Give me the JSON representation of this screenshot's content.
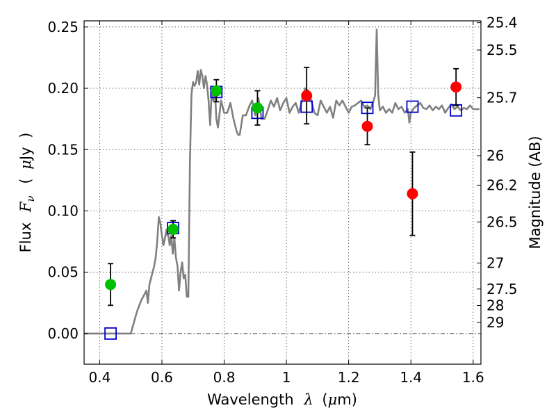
{
  "chart_data": {
    "type": "scatter",
    "xlabel": "Wavelength  λ (μm)",
    "ylabel": "Flux  F_ν  ( μJy )",
    "ylabel_parts": {
      "prefix": "Flux",
      "symbol": "F",
      "subscript": "ν",
      "open": "(",
      "unit_symbol": "μ",
      "unit": "Jy",
      "close": ")"
    },
    "xlabel_parts": {
      "text": "Wavelength",
      "symbol": "λ",
      "open": "(",
      "unit_symbol": "μ",
      "unit": "m",
      "close": ")"
    },
    "y2label": "Magnitude (AB)",
    "xlim": [
      0.35,
      1.625
    ],
    "ylim": [
      -0.025,
      0.255
    ],
    "grid": true,
    "x_ticks": [
      0.4,
      0.6,
      0.8,
      1.0,
      1.2,
      1.4,
      1.6
    ],
    "x_tick_labels": [
      "0.4",
      "0.6",
      "0.8",
      "1",
      "1.2",
      "1.4",
      "1.6"
    ],
    "y_ticks": [
      0.0,
      0.05,
      0.1,
      0.15,
      0.2,
      0.25
    ],
    "y_tick_labels": [
      "0.00",
      "0.05",
      "0.10",
      "0.15",
      "0.20",
      "0.25"
    ],
    "mag_ticks": [
      {
        "label": "25.4",
        "flux": 0.2535
      },
      {
        "label": "25.5",
        "flux": 0.2312
      },
      {
        "label": "25.7",
        "flux": 0.1923
      },
      {
        "label": "26",
        "flux": 0.145
      },
      {
        "label": "26.2",
        "flux": 0.121
      },
      {
        "label": "26.5",
        "flux": 0.091
      },
      {
        "label": "27",
        "flux": 0.0575
      },
      {
        "label": "27.5",
        "flux": 0.0363
      },
      {
        "label": "28",
        "flux": 0.0229
      },
      {
        "label": "29",
        "flux": 0.0091
      }
    ],
    "series": [
      {
        "kind": "model",
        "color": "#808080",
        "x": [
          0.35,
          0.5,
          0.52,
          0.535,
          0.54,
          0.55,
          0.555,
          0.56,
          0.565,
          0.57,
          0.575,
          0.58,
          0.585,
          0.59,
          0.595,
          0.6,
          0.605,
          0.61,
          0.615,
          0.618,
          0.62,
          0.625,
          0.63,
          0.635,
          0.64,
          0.645,
          0.65,
          0.655,
          0.66,
          0.665,
          0.67,
          0.675,
          0.68,
          0.685,
          0.69,
          0.695,
          0.7,
          0.705,
          0.71,
          0.715,
          0.72,
          0.725,
          0.73,
          0.735,
          0.74,
          0.745,
          0.75,
          0.755,
          0.76,
          0.765,
          0.77,
          0.775,
          0.78,
          0.79,
          0.8,
          0.81,
          0.82,
          0.83,
          0.84,
          0.845,
          0.85,
          0.86,
          0.87,
          0.88,
          0.89,
          0.9,
          0.91,
          0.92,
          0.93,
          0.94,
          0.95,
          0.96,
          0.97,
          0.98,
          0.99,
          1.0,
          1.01,
          1.02,
          1.03,
          1.04,
          1.05,
          1.06,
          1.07,
          1.08,
          1.09,
          1.1,
          1.11,
          1.12,
          1.13,
          1.14,
          1.15,
          1.16,
          1.17,
          1.18,
          1.19,
          1.2,
          1.21,
          1.22,
          1.23,
          1.24,
          1.25,
          1.26,
          1.27,
          1.28,
          1.285,
          1.29,
          1.295,
          1.3,
          1.31,
          1.32,
          1.33,
          1.34,
          1.35,
          1.36,
          1.37,
          1.38,
          1.39,
          1.395,
          1.4,
          1.41,
          1.42,
          1.43,
          1.44,
          1.45,
          1.46,
          1.47,
          1.48,
          1.49,
          1.5,
          1.51,
          1.52,
          1.53,
          1.54,
          1.55,
          1.56,
          1.57,
          1.58,
          1.59,
          1.6,
          1.61,
          1.62
        ],
        "y": [
          0.0,
          0.0,
          0.018,
          0.028,
          0.03,
          0.035,
          0.025,
          0.04,
          0.045,
          0.05,
          0.055,
          0.062,
          0.075,
          0.095,
          0.09,
          0.08,
          0.072,
          0.078,
          0.085,
          0.08,
          0.081,
          0.072,
          0.08,
          0.065,
          0.078,
          0.062,
          0.055,
          0.035,
          0.05,
          0.058,
          0.045,
          0.048,
          0.03,
          0.03,
          0.14,
          0.195,
          0.205,
          0.202,
          0.205,
          0.214,
          0.203,
          0.215,
          0.21,
          0.2,
          0.21,
          0.203,
          0.19,
          0.17,
          0.197,
          0.19,
          0.2,
          0.175,
          0.168,
          0.19,
          0.18,
          0.18,
          0.188,
          0.175,
          0.165,
          0.162,
          0.162,
          0.178,
          0.178,
          0.185,
          0.19,
          0.178,
          0.192,
          0.175,
          0.175,
          0.182,
          0.19,
          0.185,
          0.192,
          0.182,
          0.188,
          0.192,
          0.18,
          0.185,
          0.188,
          0.18,
          0.19,
          0.2,
          0.198,
          0.19,
          0.18,
          0.178,
          0.19,
          0.185,
          0.18,
          0.185,
          0.176,
          0.19,
          0.186,
          0.19,
          0.185,
          0.18,
          0.185,
          0.186,
          0.188,
          0.19,
          0.185,
          0.186,
          0.183,
          0.19,
          0.194,
          0.248,
          0.195,
          0.182,
          0.185,
          0.18,
          0.183,
          0.18,
          0.188,
          0.183,
          0.185,
          0.18,
          0.183,
          0.172,
          0.18,
          0.184,
          0.186,
          0.188,
          0.184,
          0.183,
          0.186,
          0.182,
          0.185,
          0.183,
          0.186,
          0.18,
          0.184,
          0.187,
          0.183,
          0.185,
          0.182,
          0.184,
          0.183,
          0.186,
          0.183,
          0.183,
          0.183
        ]
      },
      {
        "kind": "model-photometry",
        "marker": "open-square",
        "color": "#0000cc",
        "x": [
          0.435,
          0.636,
          0.775,
          0.907,
          1.065,
          1.26,
          1.405,
          1.545
        ],
        "y": [
          0.0,
          0.086,
          0.197,
          0.18,
          0.185,
          0.184,
          0.185,
          0.182
        ]
      },
      {
        "kind": "observed",
        "marker": "filled-circle",
        "color": "#00c000",
        "x": [
          0.435,
          0.636,
          0.775,
          0.907
        ],
        "y": [
          0.04,
          0.085,
          0.198,
          0.184
        ],
        "yerr": [
          0.017,
          0.007,
          0.009,
          0.014
        ]
      },
      {
        "kind": "observed",
        "marker": "filled-circle",
        "color": "#ff0000",
        "x": [
          1.065,
          1.26,
          1.405,
          1.545
        ],
        "y": [
          0.194,
          0.169,
          0.114,
          0.201
        ],
        "yerr": [
          0.023,
          0.015,
          0.034,
          0.015
        ]
      }
    ]
  }
}
